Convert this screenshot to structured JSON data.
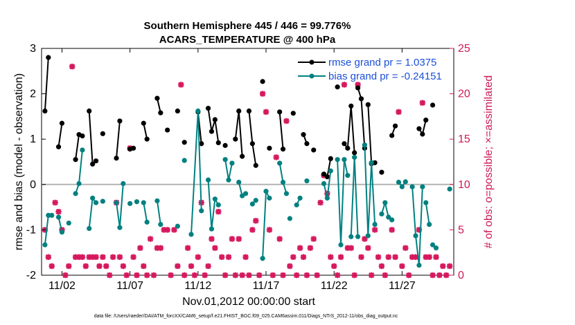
{
  "chart_data": {
    "type": "line",
    "title": "Southern Hemisphere 445 / 446 = 99.776%",
    "subtitle": "ACARS_TEMPERATURE @ 400 hPa",
    "xlabel": "Nov.01,2012 00:00:00 start",
    "ylabel": "rmse and bias (model - observation)",
    "y2label": "# of obs: o=possible; ×=assimilated",
    "footnote": "data file: /Users/raeder/DAI/ATM_forcXX/CAM6_setup/f.e21.FHIST_BGC.f09_025.CAM6assim.011/Diags_NTrS_2012-11/obs_diag_output.nc",
    "xlim": [
      0.5,
      30.8
    ],
    "ylim": [
      -2,
      3
    ],
    "y2lim": [
      0,
      25
    ],
    "xticks": [
      2,
      7,
      12,
      17,
      22,
      27
    ],
    "xtick_labels": [
      "11/02",
      "11/07",
      "11/12",
      "11/17",
      "11/22",
      "11/27"
    ],
    "yticks": [
      -2,
      -1,
      0,
      1,
      2,
      3
    ],
    "y2ticks": [
      0,
      5,
      10,
      15,
      20,
      25
    ],
    "zero_line": 0,
    "legend_position": "top-right",
    "colors": {
      "rmse": "#000000",
      "bias": "#008080",
      "obs": "#d6195e",
      "zero": "#b3b3b3",
      "legend_text": "#1a4fd8"
    },
    "series": [
      {
        "name": "rmse grand pr = 1.0375",
        "color": "#000000",
        "segments": [
          [
            [
              0.75,
              1.62
            ],
            [
              1.0,
              2.8
            ]
          ],
          [
            [
              1.75,
              0.83
            ],
            [
              2.0,
              1.35
            ]
          ],
          [
            [
              3.0,
              0.55
            ],
            [
              3.25,
              1.1
            ],
            [
              3.5,
              1.07
            ]
          ],
          [
            [
              4.0,
              1.62
            ],
            [
              4.25,
              0.45
            ],
            [
              4.5,
              0.52
            ]
          ],
          [
            [
              5.0,
              1.12
            ]
          ],
          [
            [
              6.0,
              0.58
            ],
            [
              6.25,
              1.4
            ]
          ],
          [
            [
              7.0,
              0.78
            ],
            [
              7.25,
              0.8
            ]
          ],
          [
            [
              8.0,
              1.35
            ],
            [
              8.25,
              1.0
            ]
          ],
          [
            [
              9.0,
              1.9
            ],
            [
              9.25,
              1.58
            ]
          ],
          [
            [
              9.75,
              1.2
            ]
          ],
          [
            [
              10.5,
              1.62
            ]
          ],
          [
            [
              11.0,
              0.93
            ]
          ],
          [
            [
              12.0,
              1.6
            ],
            [
              12.25,
              0.9
            ]
          ],
          [
            [
              12.75,
              1.68
            ],
            [
              13.0,
              1.17
            ],
            [
              13.25,
              1.43
            ],
            [
              13.5,
              0.92
            ]
          ],
          [
            [
              14.0,
              0.86
            ]
          ],
          [
            [
              14.75,
              1.0
            ],
            [
              15.0,
              1.62
            ],
            [
              15.25,
              0.62
            ]
          ],
          [
            [
              15.75,
              1.62
            ],
            [
              16.0,
              0.9
            ],
            [
              16.25,
              0.42
            ]
          ],
          [
            [
              16.75,
              2.27
            ]
          ],
          [
            [
              17.25,
              0.8
            ]
          ],
          [
            [
              18.0,
              1.6
            ],
            [
              18.25,
              0.78
            ]
          ],
          [
            [
              19.0,
              1.57
            ]
          ],
          [
            [
              19.75,
              1.1
            ],
            [
              20.0,
              0.9
            ]
          ],
          [
            [
              20.5,
              0.76
            ]
          ],
          [
            [
              21.25,
              0.23
            ],
            [
              21.5,
              0.17
            ],
            [
              21.75,
              0.57
            ]
          ],
          [
            [
              22.25,
              2.15
            ]
          ],
          [
            [
              22.75,
              0.9
            ],
            [
              23.0,
              0.8
            ],
            [
              23.25,
              1.73
            ],
            [
              23.5,
              0.7
            ]
          ],
          [
            [
              23.75,
              2.13
            ],
            [
              24.0,
              1.89
            ],
            [
              24.25,
              0.8
            ]
          ],
          [
            [
              24.5,
              1.76
            ],
            [
              24.75,
              0.46
            ],
            [
              25.0,
              0.48
            ]
          ],
          [
            [
              25.5,
              0.27
            ]
          ],
          [
            [
              26.25,
              1.08
            ],
            [
              26.5,
              1.29
            ]
          ],
          [
            [
              28.25,
              1.23
            ],
            [
              28.5,
              1.11
            ],
            [
              28.75,
              1.42
            ]
          ],
          [
            [
              29.25,
              1.75
            ]
          ]
        ]
      },
      {
        "name": "bias grand pr = -0.24151",
        "color": "#008080",
        "segments": [
          [
            [
              0.75,
              -1.33
            ],
            [
              1.0,
              -0.68
            ],
            [
              1.25,
              -0.68
            ]
          ],
          [
            [
              1.75,
              -0.72
            ],
            [
              2.0,
              -1.05
            ]
          ],
          [
            [
              2.5,
              -0.85
            ]
          ],
          [
            [
              3.0,
              -0.2
            ],
            [
              3.25,
              0.02
            ],
            [
              3.5,
              0.76
            ]
          ],
          [
            [
              4.0,
              -0.97
            ],
            [
              4.25,
              -0.3
            ],
            [
              4.5,
              -0.4
            ]
          ],
          [
            [
              5.0,
              -0.37
            ]
          ],
          [
            [
              6.0,
              -0.4
            ],
            [
              6.25,
              -0.95
            ],
            [
              6.5,
              0.02
            ]
          ],
          [
            [
              7.0,
              -0.42
            ]
          ],
          [
            [
              7.5,
              -0.38
            ]
          ],
          [
            [
              8.0,
              -0.4
            ],
            [
              8.25,
              -0.83
            ]
          ],
          [
            [
              9.0,
              -0.36
            ],
            [
              9.25,
              -0.88
            ]
          ],
          [
            [
              10.5,
              -0.92
            ]
          ],
          [
            [
              11.0,
              0.53
            ]
          ],
          [
            [
              11.5,
              -1.1
            ],
            [
              12.0,
              1.62
            ],
            [
              12.25,
              -0.58
            ]
          ],
          [
            [
              12.75,
              0.1
            ],
            [
              13.0,
              -0.98
            ],
            [
              13.25,
              -0.32
            ],
            [
              13.5,
              -0.45
            ]
          ],
          [
            [
              14.0,
              0.55
            ],
            [
              14.25,
              0.1
            ],
            [
              14.5,
              0.47
            ]
          ],
          [
            [
              15.0,
              0.05
            ],
            [
              15.25,
              -0.25
            ],
            [
              15.5,
              -0.2
            ]
          ],
          [
            [
              16.0,
              -0.43
            ],
            [
              16.25,
              -0.35
            ]
          ],
          [
            [
              16.75,
              -1.63
            ],
            [
              17.0,
              -0.15
            ],
            [
              17.25,
              -0.3
            ]
          ],
          [
            [
              18.0,
              0.47
            ],
            [
              18.25,
              0.05
            ],
            [
              18.5,
              -0.2
            ]
          ],
          [
            [
              18.75,
              -0.75
            ]
          ],
          [
            [
              19.25,
              -0.45
            ],
            [
              19.5,
              -0.3
            ]
          ],
          [
            [
              20.0,
              0.08
            ]
          ],
          [
            [
              21.25,
              0.02
            ],
            [
              21.5,
              -0.3
            ],
            [
              21.75,
              0.3
            ]
          ],
          [
            [
              22.25,
              0.55
            ],
            [
              22.5,
              -1.33
            ],
            [
              22.75,
              0.55
            ],
            [
              23.0,
              0.2
            ]
          ],
          [
            [
              23.25,
              -1.15
            ],
            [
              23.5,
              0.6
            ],
            [
              23.75,
              -1.15
            ]
          ],
          [
            [
              24.25,
              0.87
            ],
            [
              24.5,
              -1.13
            ],
            [
              24.75,
              0.48
            ],
            [
              25.0,
              -0.88
            ]
          ],
          [
            [
              25.5,
              -0.65
            ],
            [
              25.75,
              -0.4
            ],
            [
              26.0,
              -0.72
            ],
            [
              26.25,
              -0.78
            ]
          ],
          [
            [
              26.75,
              0.05
            ],
            [
              27.0,
              -0.05
            ],
            [
              27.25,
              0.06
            ]
          ],
          [
            [
              27.75,
              -0.05
            ],
            [
              28.0,
              -1.13
            ],
            [
              28.25,
              -1.78
            ],
            [
              28.5,
              -0.05
            ]
          ],
          [
            [
              28.75,
              -0.4
            ],
            [
              29.0,
              -0.88
            ]
          ],
          [
            [
              29.25,
              -1.33
            ],
            [
              29.5,
              -1.4
            ]
          ],
          [
            [
              30.5,
              -0.1
            ]
          ]
        ]
      }
    ],
    "obs_assimilated": [
      [
        0.75,
        5
      ],
      [
        1.0,
        2
      ],
      [
        1.25,
        1
      ],
      [
        1.5,
        8
      ],
      [
        1.75,
        7
      ],
      [
        2.0,
        5
      ],
      [
        2.25,
        0
      ],
      [
        2.5,
        1
      ],
      [
        2.75,
        23
      ],
      [
        3.0,
        2
      ],
      [
        3.25,
        2
      ],
      [
        3.5,
        2
      ],
      [
        3.75,
        1
      ],
      [
        4.0,
        2
      ],
      [
        4.25,
        2
      ],
      [
        4.5,
        2
      ],
      [
        4.75,
        1
      ],
      [
        5.0,
        2
      ],
      [
        5.25,
        1
      ],
      [
        5.5,
        0
      ],
      [
        5.75,
        2
      ],
      [
        6.0,
        8
      ],
      [
        6.25,
        2
      ],
      [
        6.5,
        1
      ],
      [
        6.75,
        0
      ],
      [
        7.0,
        14
      ],
      [
        7.25,
        2
      ],
      [
        7.5,
        0
      ],
      [
        7.75,
        3
      ],
      [
        8.0,
        1
      ],
      [
        8.25,
        0
      ],
      [
        8.5,
        4
      ],
      [
        8.75,
        0
      ],
      [
        9.0,
        3
      ],
      [
        9.25,
        3
      ],
      [
        9.5,
        5
      ],
      [
        9.75,
        5
      ],
      [
        10.0,
        0
      ],
      [
        10.25,
        5
      ],
      [
        10.5,
        1
      ],
      [
        10.75,
        21
      ],
      [
        11.0,
        0
      ],
      [
        11.25,
        3
      ],
      [
        11.5,
        1
      ],
      [
        11.75,
        0
      ],
      [
        12.0,
        2
      ],
      [
        12.25,
        8
      ],
      [
        12.5,
        0
      ],
      [
        12.75,
        1
      ],
      [
        13.0,
        4
      ],
      [
        13.25,
        3
      ],
      [
        13.5,
        7
      ],
      [
        13.75,
        2
      ],
      [
        14.0,
        0
      ],
      [
        14.25,
        2
      ],
      [
        14.5,
        4
      ],
      [
        14.75,
        0
      ],
      [
        15.0,
        4
      ],
      [
        15.25,
        0
      ],
      [
        15.5,
        2
      ],
      [
        15.75,
        0
      ],
      [
        16.0,
        5
      ],
      [
        16.25,
        6
      ],
      [
        16.5,
        0
      ],
      [
        16.75,
        20
      ],
      [
        17.0,
        18
      ],
      [
        17.25,
        5
      ],
      [
        17.5,
        0
      ],
      [
        17.75,
        13
      ],
      [
        18.0,
        4
      ],
      [
        18.25,
        0
      ],
      [
        18.5,
        17
      ],
      [
        18.75,
        1
      ],
      [
        19.0,
        2
      ],
      [
        19.25,
        0
      ],
      [
        19.5,
        3
      ],
      [
        19.75,
        2
      ],
      [
        20.0,
        0
      ],
      [
        20.25,
        3
      ],
      [
        20.5,
        4
      ],
      [
        20.75,
        0
      ],
      [
        21.0,
        8
      ],
      [
        21.25,
        11
      ],
      [
        21.5,
        9
      ],
      [
        21.75,
        2
      ],
      [
        22.0,
        1
      ],
      [
        22.25,
        0
      ],
      [
        22.5,
        2
      ],
      [
        22.75,
        21
      ],
      [
        23.0,
        3
      ],
      [
        23.25,
        3
      ],
      [
        23.5,
        0
      ],
      [
        23.75,
        21
      ],
      [
        24.0,
        2
      ],
      [
        24.25,
        4
      ],
      [
        24.5,
        3
      ],
      [
        24.75,
        0
      ],
      [
        25.0,
        5
      ],
      [
        25.25,
        2
      ],
      [
        25.5,
        1
      ],
      [
        25.75,
        0
      ],
      [
        26.0,
        2
      ],
      [
        26.25,
        5
      ],
      [
        26.5,
        2
      ],
      [
        26.75,
        18
      ],
      [
        27.0,
        1
      ],
      [
        27.25,
        3
      ],
      [
        27.5,
        0
      ],
      [
        27.75,
        2
      ],
      [
        28.0,
        2
      ],
      [
        28.25,
        5
      ],
      [
        28.5,
        19
      ],
      [
        28.75,
        2
      ],
      [
        29.0,
        2
      ],
      [
        29.25,
        0
      ],
      [
        29.5,
        2
      ],
      [
        29.75,
        0
      ],
      [
        30.0,
        1
      ],
      [
        30.25,
        0
      ],
      [
        30.5,
        1
      ]
    ]
  }
}
